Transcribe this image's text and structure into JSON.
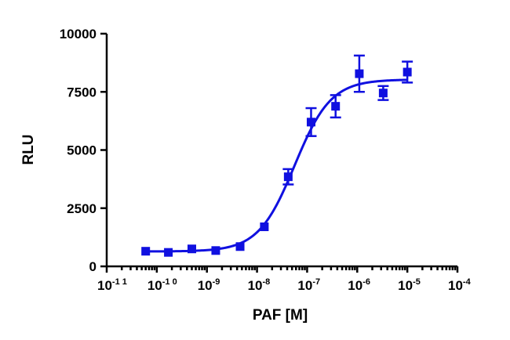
{
  "chart_data": {
    "type": "scatter",
    "xscale": "log",
    "xlabel": "PAF [M]",
    "ylabel": "RLU",
    "xlim": [
      1e-11,
      0.0001
    ],
    "ylim": [
      0,
      10000
    ],
    "x_ticks": [
      {
        "base": "10",
        "exp": "-1 1",
        "value": 1e-11
      },
      {
        "base": "10",
        "exp": "-1 0",
        "value": 1e-10
      },
      {
        "base": "10",
        "exp": "-9",
        "value": 1e-09
      },
      {
        "base": "10",
        "exp": "-8",
        "value": 1e-08
      },
      {
        "base": "10",
        "exp": "-7",
        "value": 1e-07
      },
      {
        "base": "10",
        "exp": "-6",
        "value": 1e-06
      },
      {
        "base": "10",
        "exp": "-5",
        "value": 1e-05
      },
      {
        "base": "10",
        "exp": "-4",
        "value": 0.0001
      }
    ],
    "y_ticks": [
      "0",
      "2500",
      "5000",
      "7500",
      "10000"
    ],
    "color": "#1010e0",
    "points": [
      {
        "x": 6e-11,
        "y": 650,
        "err": 0
      },
      {
        "x": 1.7e-10,
        "y": 600,
        "err": 0
      },
      {
        "x": 5e-10,
        "y": 750,
        "err": 0
      },
      {
        "x": 1.5e-09,
        "y": 680,
        "err": 0
      },
      {
        "x": 4.6e-09,
        "y": 850,
        "err": 0
      },
      {
        "x": 1.4e-08,
        "y": 1700,
        "err": 0
      },
      {
        "x": 4.2e-08,
        "y": 3850,
        "err": 330
      },
      {
        "x": 1.2e-07,
        "y": 6200,
        "err": 600
      },
      {
        "x": 3.7e-07,
        "y": 6880,
        "err": 480
      },
      {
        "x": 1.1e-06,
        "y": 8280,
        "err": 780
      },
      {
        "x": 3.3e-06,
        "y": 7450,
        "err": 300
      },
      {
        "x": 1e-05,
        "y": 8350,
        "err": 450
      }
    ],
    "fit": {
      "bottom": 640,
      "top": 8030,
      "log_ec50": -7.25,
      "hill": 1.2,
      "x_from": 6e-11,
      "x_to": 1e-05
    }
  }
}
